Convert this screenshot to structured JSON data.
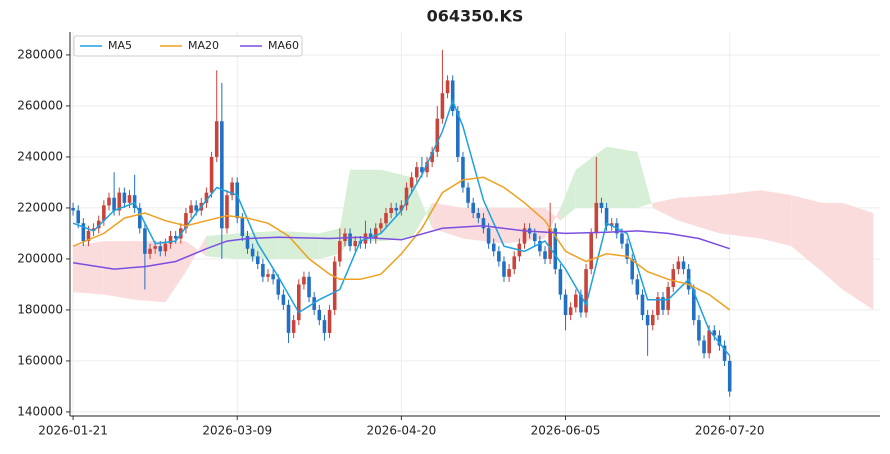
{
  "chart_data": {
    "type": "candlestick",
    "title": "064350.KS",
    "xlim": [
      -0.6,
      157.3
    ],
    "ylim": [
      138400,
      289000
    ],
    "xticks": [
      {
        "value": 0,
        "label": "2026-01-21"
      },
      {
        "value": 32,
        "label": "2026-03-09"
      },
      {
        "value": 64,
        "label": "2026-04-20"
      },
      {
        "value": 96,
        "label": "2026-06-05"
      },
      {
        "value": 128,
        "label": "2026-07-20"
      }
    ],
    "yticks": [
      140000,
      160000,
      180000,
      200000,
      220000,
      240000,
      260000,
      280000
    ],
    "grid": true,
    "legend": "upper left",
    "up_color": "#c9433b",
    "down_color": "#2170c4",
    "open": [
      220000,
      219000,
      214000,
      207000,
      211000,
      212000,
      215000,
      221000,
      224000,
      219000,
      226000,
      222000,
      225000,
      220000,
      212000,
      202000,
      204000,
      205000,
      203000,
      206000,
      209000,
      208000,
      212000,
      218000,
      221000,
      219000,
      222000,
      226000,
      240000,
      254000,
      212000,
      225000,
      230000,
      216000,
      209000,
      204000,
      201000,
      198000,
      193000,
      194000,
      192000,
      186000,
      182000,
      171000,
      176000,
      190000,
      193000,
      185000,
      180000,
      176000,
      171000,
      180000,
      199000,
      207000,
      210000,
      205000,
      207000,
      206000,
      210000,
      208000,
      212000,
      214000,
      218000,
      220000,
      219000,
      221000,
      228000,
      232000,
      236000,
      234000,
      238000,
      242000,
      255000,
      265000,
      270000,
      258000,
      240000,
      228000,
      222000,
      218000,
      216000,
      212000,
      206000,
      203000,
      199000,
      193000,
      196000,
      201000,
      206000,
      212000,
      210000,
      207000,
      203000,
      200000,
      212000,
      196000,
      186000,
      178000,
      181000,
      186000,
      179000,
      196000,
      210000,
      222000,
      220000,
      213000,
      214000,
      210000,
      206000,
      200000,
      192000,
      186000,
      178000,
      174000,
      178000,
      185000,
      180000,
      189000,
      196000,
      199000,
      196000,
      188000,
      176000,
      168000,
      163000,
      172000,
      170000,
      166000,
      160000
    ],
    "high": [
      222000,
      221000,
      216000,
      213000,
      214000,
      217000,
      223000,
      226000,
      234000,
      228000,
      228000,
      227000,
      233000,
      222000,
      214000,
      206000,
      207000,
      207000,
      208000,
      211000,
      211000,
      214000,
      220000,
      223000,
      223000,
      224000,
      228000,
      242000,
      274000,
      269000,
      227000,
      232000,
      232000,
      218000,
      211000,
      206000,
      203000,
      200000,
      196000,
      196000,
      194000,
      188000,
      184000,
      178000,
      192000,
      195000,
      195000,
      187000,
      182000,
      178000,
      182000,
      201000,
      212000,
      212000,
      212000,
      209000,
      209000,
      215000,
      212000,
      214000,
      216000,
      220000,
      222000,
      222000,
      223000,
      230000,
      234000,
      238000,
      240000,
      240000,
      244000,
      260000,
      282000,
      272000,
      272000,
      260000,
      242000,
      230000,
      224000,
      220000,
      218000,
      214000,
      208000,
      205000,
      201000,
      198000,
      203000,
      208000,
      214000,
      214000,
      212000,
      209000,
      205000,
      222000,
      214000,
      198000,
      188000,
      183000,
      188000,
      188000,
      198000,
      212000,
      240000,
      224000,
      222000,
      216000,
      216000,
      212000,
      208000,
      202000,
      194000,
      188000,
      180000,
      180000,
      187000,
      187000,
      191000,
      198000,
      201000,
      201000,
      198000,
      190000,
      178000,
      170000,
      174000,
      174000,
      172000,
      168000,
      162000
    ],
    "low": [
      217000,
      212000,
      205000,
      205000,
      209000,
      210000,
      213000,
      219000,
      217000,
      217000,
      220000,
      220000,
      218000,
      210000,
      188000,
      200000,
      202000,
      201000,
      201000,
      204000,
      206000,
      206000,
      210000,
      216000,
      217000,
      217000,
      220000,
      224000,
      238000,
      200000,
      210000,
      223000,
      214000,
      207000,
      202000,
      199000,
      196000,
      191000,
      191000,
      190000,
      184000,
      180000,
      167000,
      169000,
      174000,
      188000,
      183000,
      178000,
      174000,
      168000,
      169000,
      178000,
      197000,
      205000,
      203000,
      203000,
      204000,
      204000,
      206000,
      206000,
      210000,
      212000,
      216000,
      217000,
      217000,
      219000,
      226000,
      230000,
      232000,
      232000,
      236000,
      240000,
      253000,
      263000,
      256000,
      238000,
      226000,
      220000,
      216000,
      214000,
      210000,
      204000,
      201000,
      197000,
      191000,
      191000,
      194000,
      199000,
      204000,
      208000,
      205000,
      201000,
      198000,
      198000,
      194000,
      184000,
      172000,
      176000,
      179000,
      177000,
      177000,
      194000,
      208000,
      218000,
      211000,
      211000,
      208000,
      204000,
      198000,
      190000,
      184000,
      176000,
      162000,
      172000,
      176000,
      178000,
      178000,
      187000,
      194000,
      194000,
      186000,
      174000,
      166000,
      161000,
      161000,
      168000,
      164000,
      158000,
      146000
    ],
    "close": [
      219000,
      214000,
      207000,
      211000,
      212000,
      215000,
      221000,
      224000,
      219000,
      226000,
      222000,
      225000,
      220000,
      212000,
      202000,
      204000,
      205000,
      203000,
      206000,
      209000,
      208000,
      212000,
      218000,
      221000,
      219000,
      222000,
      226000,
      240000,
      254000,
      212000,
      225000,
      230000,
      216000,
      209000,
      204000,
      201000,
      198000,
      193000,
      194000,
      192000,
      186000,
      182000,
      171000,
      176000,
      190000,
      193000,
      185000,
      180000,
      176000,
      171000,
      180000,
      199000,
      207000,
      210000,
      205000,
      207000,
      206000,
      210000,
      208000,
      212000,
      214000,
      218000,
      220000,
      219000,
      221000,
      228000,
      232000,
      236000,
      234000,
      238000,
      242000,
      255000,
      265000,
      270000,
      258000,
      240000,
      228000,
      222000,
      218000,
      216000,
      212000,
      206000,
      203000,
      199000,
      193000,
      196000,
      201000,
      206000,
      212000,
      210000,
      207000,
      203000,
      200000,
      212000,
      196000,
      186000,
      178000,
      181000,
      186000,
      179000,
      196000,
      210000,
      222000,
      220000,
      213000,
      214000,
      210000,
      206000,
      200000,
      192000,
      186000,
      178000,
      174000,
      178000,
      185000,
      180000,
      189000,
      196000,
      199000,
      196000,
      188000,
      176000,
      168000,
      163000,
      172000,
      170000,
      166000,
      160000,
      148000
    ],
    "series": [
      {
        "name": "MA5",
        "color": "#1ba1e2",
        "x": [
          0,
          4,
          8,
          12,
          16,
          20,
          24,
          28,
          32,
          36,
          40,
          44,
          48,
          52,
          56,
          60,
          64,
          68,
          72,
          74,
          76,
          80,
          84,
          88,
          92,
          96,
          100,
          104,
          108,
          112,
          116,
          120,
          124,
          128
        ],
        "values": [
          214000,
          211000,
          219000,
          222000,
          206000,
          207000,
          218000,
          228000,
          225000,
          206000,
          193000,
          179000,
          184000,
          188000,
          207000,
          210000,
          219000,
          233000,
          250000,
          262000,
          252000,
          223000,
          205000,
          203000,
          207000,
          196000,
          182000,
          214000,
          210000,
          184000,
          184000,
          192000,
          172000,
          162000
        ]
      },
      {
        "name": "MA20",
        "color": "#f0a020",
        "x": [
          0,
          6,
          10,
          14,
          18,
          22,
          26,
          30,
          34,
          38,
          42,
          46,
          50,
          52,
          56,
          60,
          64,
          68,
          72,
          76,
          80,
          84,
          88,
          92,
          96,
          100,
          104,
          108,
          112,
          116,
          120,
          124,
          128
        ],
        "values": [
          205000,
          210000,
          216000,
          218000,
          215000,
          213000,
          215000,
          217000,
          216000,
          214000,
          209000,
          200000,
          194000,
          192000,
          192000,
          194000,
          202000,
          212000,
          226000,
          231000,
          232000,
          228000,
          222000,
          215000,
          203000,
          199000,
          202000,
          201000,
          195000,
          192000,
          190000,
          186000,
          180000
        ]
      },
      {
        "name": "MA60",
        "color": "#7b4ee0",
        "x": [
          0,
          8,
          14,
          20,
          26,
          30,
          34,
          40,
          50,
          56,
          64,
          72,
          80,
          88,
          96,
          104,
          110,
          116,
          122,
          128
        ],
        "values": [
          198500,
          196000,
          197000,
          199000,
          204000,
          207000,
          208000,
          208500,
          208000,
          208500,
          207500,
          212000,
          213000,
          211000,
          210000,
          210500,
          211000,
          210000,
          208000,
          204000
        ]
      }
    ],
    "cloud": {
      "x": [
        0,
        6,
        12,
        18,
        22,
        26,
        32,
        40,
        48,
        52,
        54,
        60,
        66,
        70,
        76,
        84,
        92,
        95,
        98,
        104,
        110,
        113,
        118,
        126,
        134,
        140,
        146,
        150,
        156
      ],
      "span_a": [
        187000,
        186000,
        184000,
        183000,
        195000,
        209000,
        210000,
        211000,
        210000,
        212000,
        235000,
        235000,
        232000,
        212000,
        208000,
        206000,
        208000,
        220000,
        235000,
        244000,
        242000,
        220000,
        215000,
        210000,
        208000,
        205000,
        195000,
        188000,
        180000
      ],
      "span_b": [
        205000,
        207000,
        207000,
        207000,
        207000,
        201000,
        200000,
        200000,
        200000,
        202000,
        207000,
        207000,
        208000,
        222000,
        220000,
        220000,
        220000,
        215000,
        220000,
        220000,
        220000,
        222000,
        224000,
        225000,
        227000,
        225000,
        222000,
        222000,
        218000
      ],
      "up_color": "#d6efd6",
      "down_color": "#fbdcdc"
    }
  }
}
